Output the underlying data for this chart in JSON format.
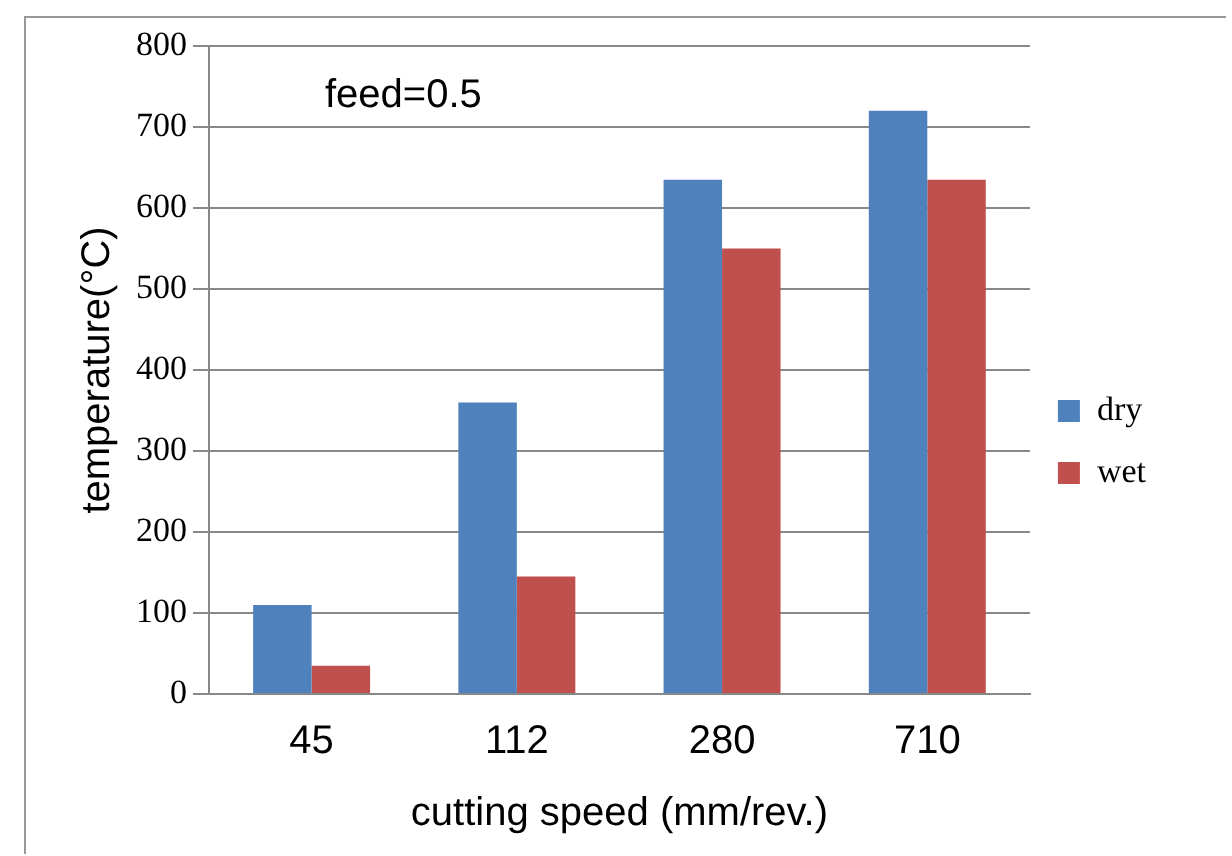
{
  "chart_data": {
    "type": "bar",
    "xlabel": "cutting speed (mm/rev.)",
    "ylabel": "temperature(°C)",
    "annotations": [
      "feed=0.5"
    ],
    "categories": [
      "45",
      "112",
      "280",
      "710"
    ],
    "series": [
      {
        "name": "dry",
        "color": "#4f81bd",
        "values": [
          110,
          360,
          635,
          720
        ]
      },
      {
        "name": "wet",
        "color": "#c0504d",
        "values": [
          35,
          145,
          550,
          635
        ]
      }
    ],
    "ylim": [
      0,
      800
    ],
    "yticks": [
      0,
      100,
      200,
      300,
      400,
      500,
      600,
      700,
      800
    ],
    "grid": "y",
    "legend": "right"
  }
}
